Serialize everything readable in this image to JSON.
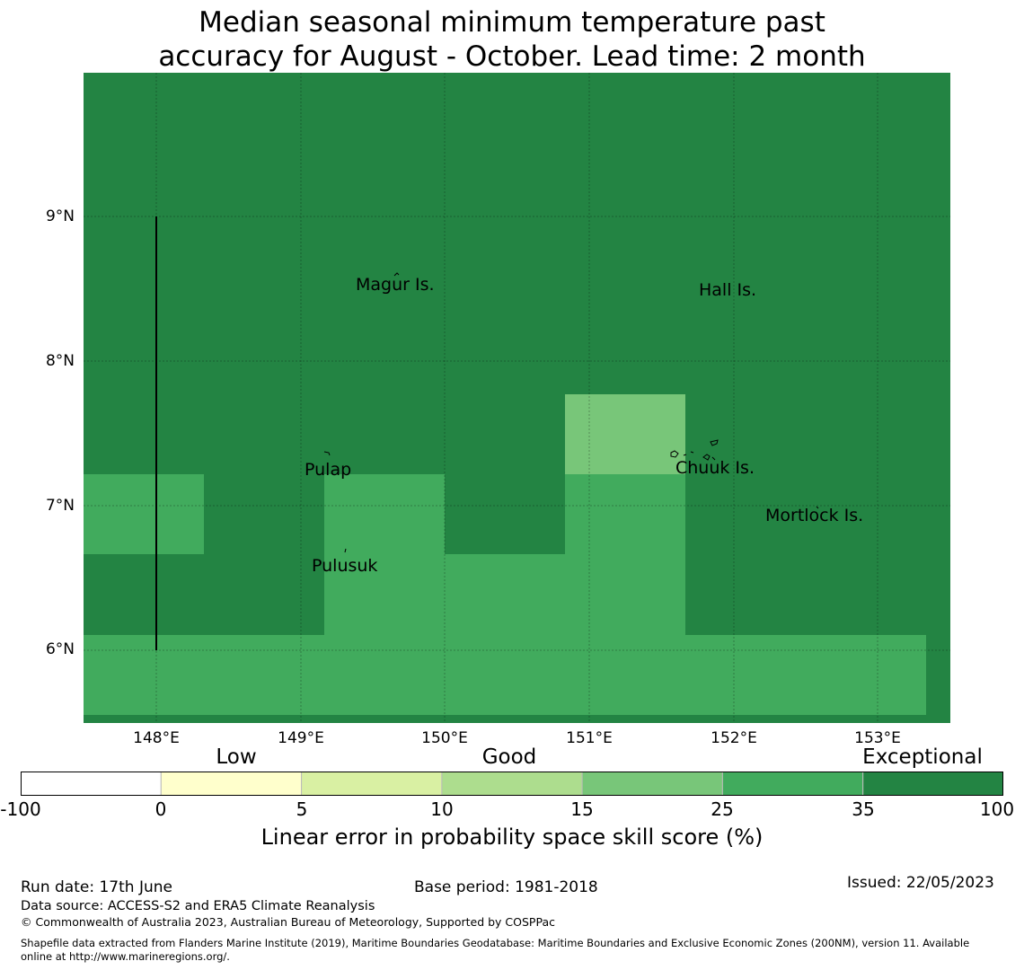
{
  "title": {
    "line1": "Median seasonal minimum temperature past",
    "line2": "accuracy for August - October. Lead time: 2 month"
  },
  "map": {
    "lon_range": [
      147.5,
      153.5
    ],
    "lat_range": [
      5.5,
      10.0
    ],
    "lat_ticks": [
      "9°N",
      "8°N",
      "7°N",
      "6°N"
    ],
    "lon_ticks": [
      "148°E",
      "149°E",
      "150°E",
      "151°E",
      "152°E",
      "153°E"
    ],
    "gridlines": true,
    "places": [
      {
        "name": "Magur Is.",
        "lon": 149.83,
        "lat": 8.53
      },
      {
        "name": "Hall Is.",
        "lon": 151.97,
        "lat": 8.49
      },
      {
        "name": "Pulap",
        "lon": 149.21,
        "lat": 7.25
      },
      {
        "name": "Chuuk Is.",
        "lon": 151.86,
        "lat": 7.26
      },
      {
        "name": "Mortlock Is.",
        "lon": 152.6,
        "lat": 6.93
      },
      {
        "name": "Pulusuk",
        "lon": 149.33,
        "lat": 6.59
      }
    ],
    "colors": {
      "exceptional": "#238443",
      "high_good": "#41ab5d",
      "good": "#78c679",
      "mid_good": "#addd8e",
      "low_good": "#d9f0a3",
      "low": "#ffffcc",
      "none": "#ffffff"
    }
  },
  "legend": {
    "categories": [
      "Low",
      "Good",
      "Exceptional"
    ],
    "ticks": [
      "-100",
      "0",
      "5",
      "10",
      "15",
      "25",
      "35",
      "100"
    ],
    "colors": [
      "#ffffff",
      "#ffffcc",
      "#d9f0a3",
      "#addd8e",
      "#78c679",
      "#41ab5d",
      "#238443"
    ],
    "label": "Linear error in probability space skill score (%)"
  },
  "footer": {
    "run_date": "Run date: 17th June",
    "base_period": "Base period: 1981-2018",
    "issued": "Issued: 22/05/2023",
    "data_source": "Data source: ACCESS-S2 and ERA5 Climate Reanalysis",
    "copyright": "© Commonwealth of Australia 2023, Australian Bureau of Meteorology, Supported by COSPPac",
    "shapefile_line1": "Shapefile data extracted from Flanders Marine Institute (2019), Maritime Boundaries Geodatabase: Maritime Boundaries and Exclusive Economic Zones (200NM), version 11. Available",
    "shapefile_line2": "online at http://www.marineregions.org/."
  }
}
